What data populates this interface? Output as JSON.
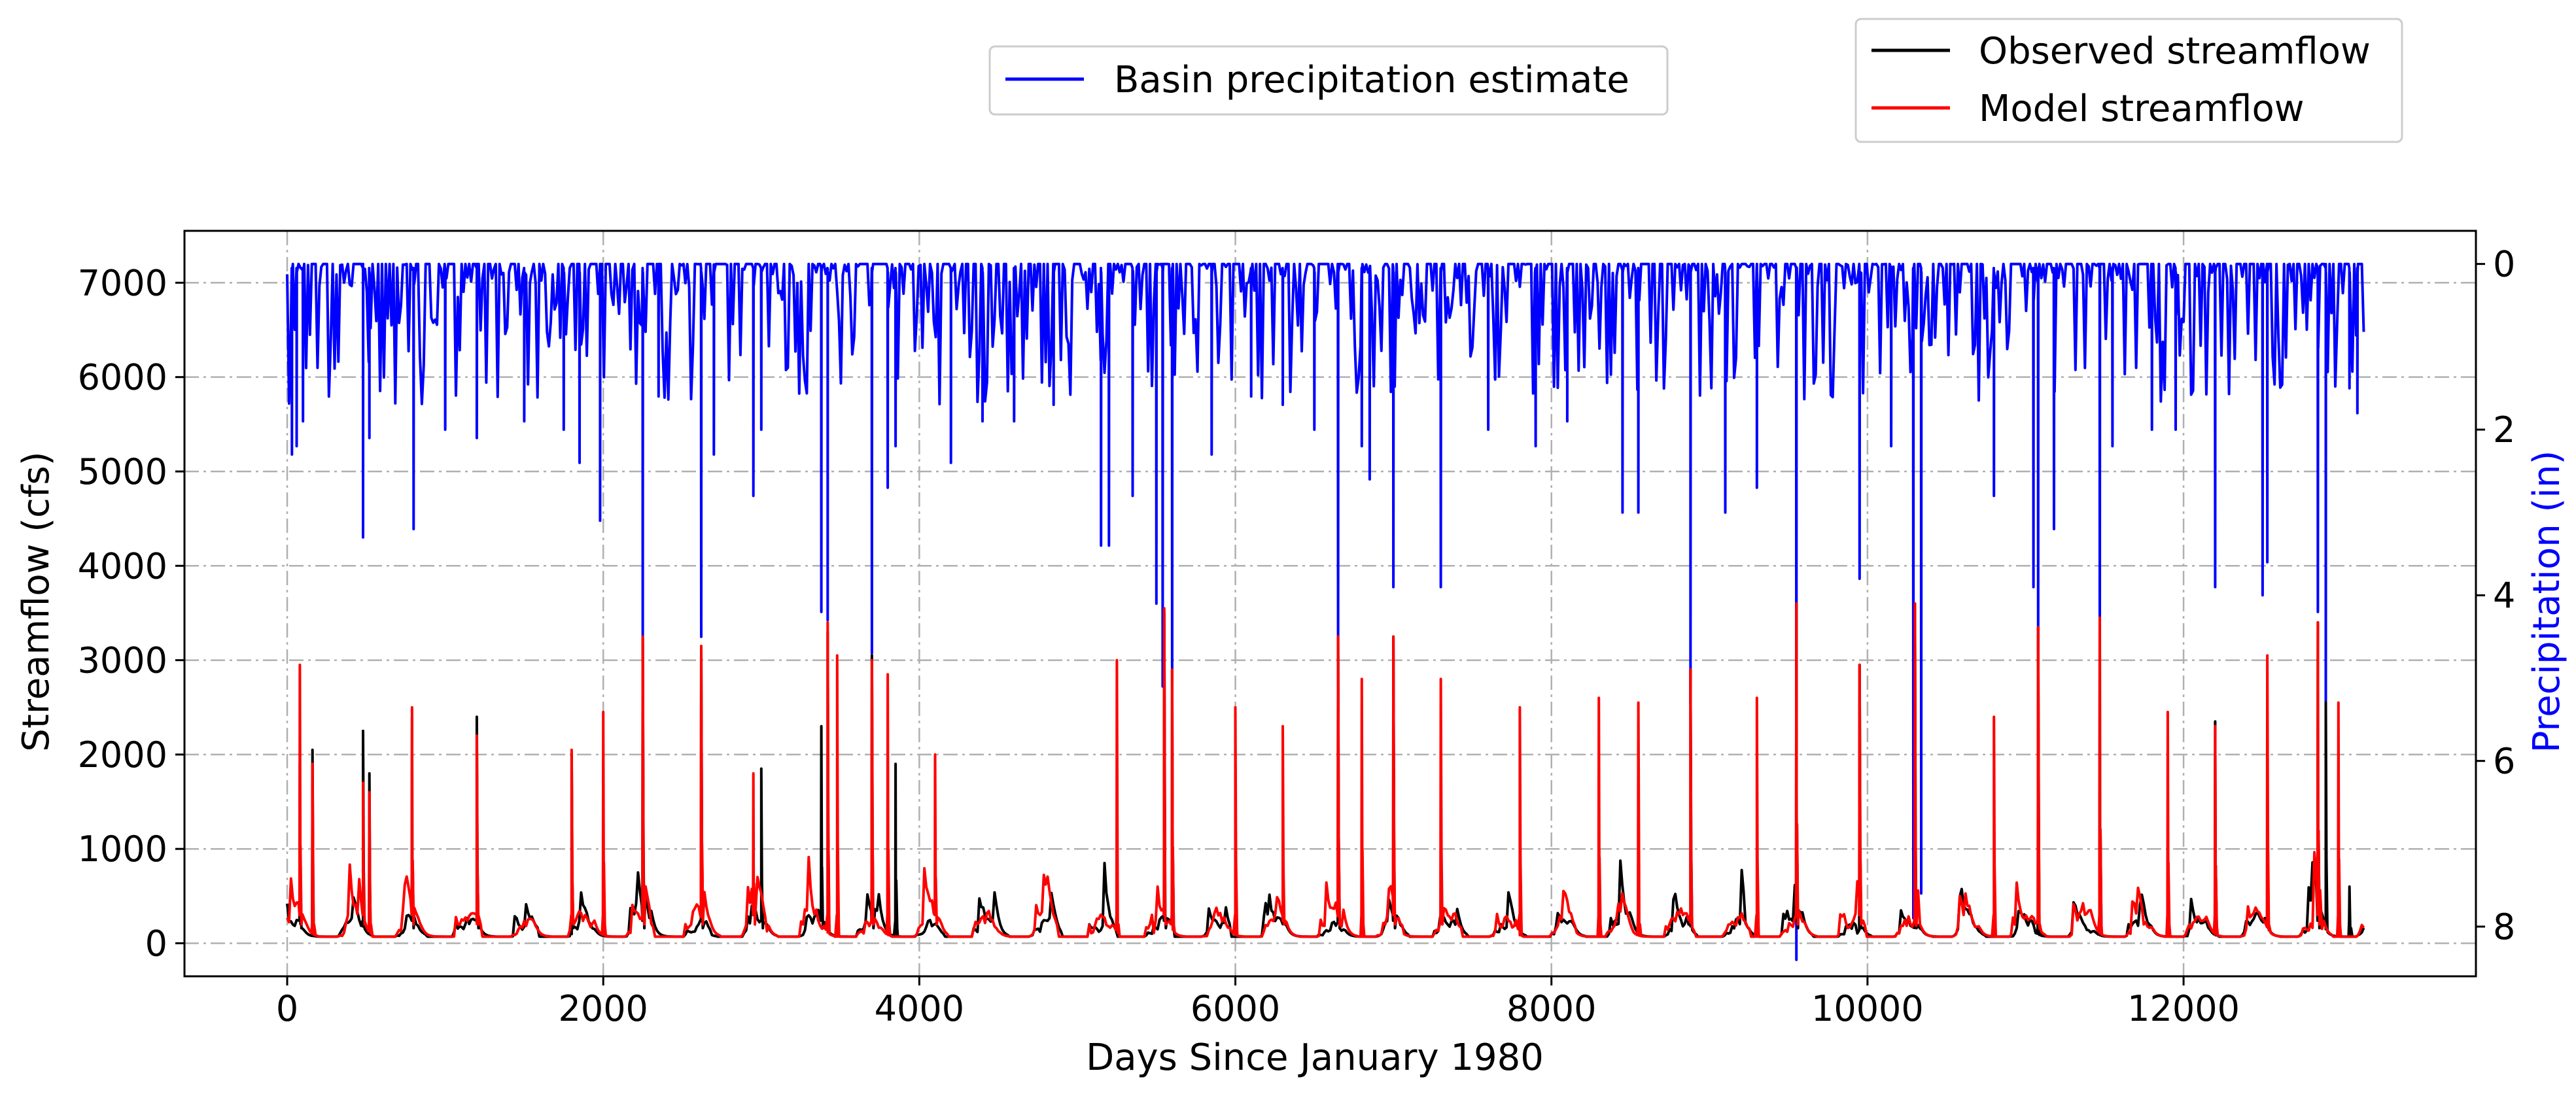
{
  "chart_data": {
    "type": "line",
    "xlabel": "Days Since January 1980",
    "ylabel_left": "Streamflow (cfs)",
    "ylabel_right": "Precipitation (in)",
    "xlim": [
      -650,
      13850
    ],
    "ylim_left": [
      -350,
      7550
    ],
    "ylim_right": [
      8.6,
      -0.4
    ],
    "right_axis_inverted": true,
    "grid": true,
    "x_ticks": [
      0,
      2000,
      4000,
      6000,
      8000,
      10000,
      12000
    ],
    "x_tick_labels": [
      "0",
      "2000",
      "4000",
      "6000",
      "8000",
      "10000",
      "12000"
    ],
    "y_left_ticks": [
      0,
      1000,
      2000,
      3000,
      4000,
      5000,
      6000,
      7000
    ],
    "y_left_tick_labels": [
      "0",
      "1000",
      "2000",
      "3000",
      "4000",
      "5000",
      "6000",
      "7000"
    ],
    "y_right_ticks": [
      0,
      2,
      4,
      6,
      8
    ],
    "y_right_tick_labels": [
      "0",
      "2",
      "4",
      "6",
      "8"
    ],
    "colors": {
      "precip": "#0000ff",
      "observed": "#000000",
      "model": "#ff0000",
      "right_axis_label": "#0000ff"
    },
    "legends": [
      {
        "placement": "top-center",
        "entries": [
          {
            "name": "Basin precipitation estimate",
            "color": "#0000ff"
          }
        ]
      },
      {
        "placement": "top-right",
        "entries": [
          {
            "name": "Observed streamflow",
            "color": "#000000"
          },
          {
            "name": "Model streamflow",
            "color": "#ff0000"
          }
        ]
      }
    ],
    "series": [
      {
        "name": "Basin precipitation estimate",
        "axis": "right",
        "x_range": [
          0,
          13150
        ],
        "typical_range": [
          0,
          1.5
        ],
        "peaks": [
          [
            30,
            2.3
          ],
          [
            60,
            2.2
          ],
          [
            100,
            1.9
          ],
          [
            480,
            3.3
          ],
          [
            520,
            2.1
          ],
          [
            800,
            3.2
          ],
          [
            1000,
            2.0
          ],
          [
            1200,
            2.1
          ],
          [
            1500,
            1.9
          ],
          [
            1750,
            2.0
          ],
          [
            1850,
            2.4
          ],
          [
            1980,
            3.1
          ],
          [
            2250,
            4.7
          ],
          [
            2350,
            1.6
          ],
          [
            2620,
            4.5
          ],
          [
            2700,
            2.3
          ],
          [
            2950,
            2.8
          ],
          [
            3000,
            2.0
          ],
          [
            3380,
            4.2
          ],
          [
            3420,
            4.3
          ],
          [
            3700,
            4.7
          ],
          [
            3800,
            2.7
          ],
          [
            3850,
            2.2
          ],
          [
            4200,
            2.4
          ],
          [
            4400,
            1.9
          ],
          [
            4600,
            1.9
          ],
          [
            4850,
            1.7
          ],
          [
            5150,
            3.4
          ],
          [
            5200,
            3.4
          ],
          [
            5350,
            2.8
          ],
          [
            5500,
            4.1
          ],
          [
            5540,
            5.1
          ],
          [
            5600,
            5.1
          ],
          [
            5850,
            2.3
          ],
          [
            6100,
            1.6
          ],
          [
            6300,
            1.7
          ],
          [
            6500,
            2.0
          ],
          [
            6650,
            4.5
          ],
          [
            6800,
            2.2
          ],
          [
            6850,
            2.6
          ],
          [
            7000,
            3.9
          ],
          [
            7300,
            3.9
          ],
          [
            7600,
            2.0
          ],
          [
            7900,
            2.2
          ],
          [
            8100,
            1.9
          ],
          [
            8450,
            3.0
          ],
          [
            8550,
            3.0
          ],
          [
            8880,
            5.3
          ],
          [
            9100,
            3.0
          ],
          [
            9300,
            2.7
          ],
          [
            9550,
            8.4
          ],
          [
            9950,
            3.8
          ],
          [
            10150,
            2.2
          ],
          [
            10290,
            7.9
          ],
          [
            10340,
            7.6
          ],
          [
            10800,
            2.8
          ],
          [
            11050,
            3.9
          ],
          [
            11080,
            4.7
          ],
          [
            11180,
            3.2
          ],
          [
            11470,
            4.7
          ],
          [
            11550,
            2.2
          ],
          [
            11800,
            2.0
          ],
          [
            11950,
            2.0
          ],
          [
            12200,
            3.9
          ],
          [
            12500,
            4.0
          ],
          [
            12530,
            3.6
          ],
          [
            12850,
            4.2
          ],
          [
            12900,
            5.5
          ],
          [
            13050,
            1.5
          ],
          [
            13100,
            1.8
          ]
        ]
      },
      {
        "name": "Observed streamflow",
        "axis": "left",
        "x_range": [
          0,
          13150
        ],
        "baseline": [
          70,
          400
        ],
        "peaks": [
          [
            80,
            1900
          ],
          [
            160,
            2050
          ],
          [
            480,
            2250
          ],
          [
            520,
            1800
          ],
          [
            790,
            2400
          ],
          [
            1200,
            2400
          ],
          [
            1800,
            2000
          ],
          [
            2250,
            3250
          ],
          [
            2620,
            3100
          ],
          [
            3000,
            1850
          ],
          [
            3380,
            2300
          ],
          [
            3420,
            3300
          ],
          [
            3700,
            3050
          ],
          [
            3850,
            1900
          ],
          [
            5550,
            3500
          ],
          [
            5600,
            2900
          ],
          [
            6650,
            3250
          ],
          [
            7000,
            3250
          ],
          [
            8880,
            2900
          ],
          [
            9550,
            3600
          ],
          [
            9950,
            2950
          ],
          [
            10300,
            3600
          ],
          [
            11080,
            3350
          ],
          [
            11470,
            3400
          ],
          [
            12200,
            2350
          ],
          [
            12850,
            3400
          ],
          [
            12900,
            2550
          ],
          [
            13050,
            600
          ]
        ]
      },
      {
        "name": "Model streamflow",
        "axis": "left",
        "x_range": [
          0,
          13150
        ],
        "baseline": [
          70,
          500
        ],
        "peaks": [
          [
            80,
            2950
          ],
          [
            160,
            1900
          ],
          [
            480,
            1700
          ],
          [
            520,
            1600
          ],
          [
            790,
            2500
          ],
          [
            1200,
            2200
          ],
          [
            1800,
            2050
          ],
          [
            2000,
            2450
          ],
          [
            2250,
            3250
          ],
          [
            2620,
            3150
          ],
          [
            2950,
            1800
          ],
          [
            3420,
            3400
          ],
          [
            3480,
            3050
          ],
          [
            3700,
            3000
          ],
          [
            3800,
            2850
          ],
          [
            4100,
            2000
          ],
          [
            5250,
            3000
          ],
          [
            5550,
            3550
          ],
          [
            5600,
            2900
          ],
          [
            6000,
            2500
          ],
          [
            6300,
            2300
          ],
          [
            6650,
            3250
          ],
          [
            6800,
            2800
          ],
          [
            7000,
            3250
          ],
          [
            7300,
            2800
          ],
          [
            7800,
            2500
          ],
          [
            8300,
            2600
          ],
          [
            8550,
            2550
          ],
          [
            8880,
            2900
          ],
          [
            9300,
            2600
          ],
          [
            9550,
            3600
          ],
          [
            9950,
            2950
          ],
          [
            10300,
            3600
          ],
          [
            10800,
            2400
          ],
          [
            11080,
            3350
          ],
          [
            11470,
            3450
          ],
          [
            11900,
            2450
          ],
          [
            12200,
            2300
          ],
          [
            12530,
            3050
          ],
          [
            12850,
            3400
          ],
          [
            12980,
            2550
          ]
        ]
      }
    ]
  }
}
